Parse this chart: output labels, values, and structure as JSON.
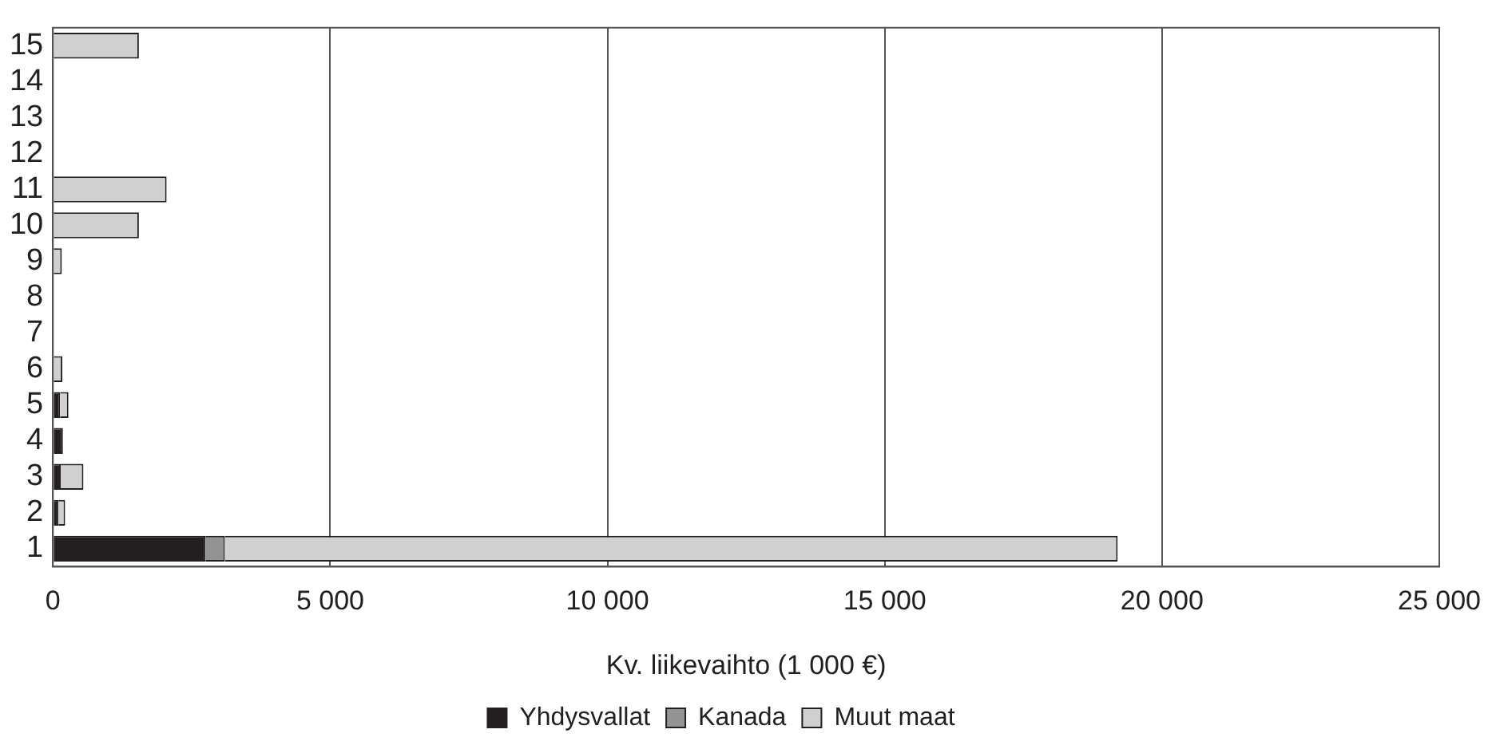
{
  "chart_data": {
    "type": "bar",
    "orientation": "horizontal",
    "stacked": true,
    "categories": [
      "15",
      "14",
      "13",
      "12",
      "11",
      "10",
      "9",
      "8",
      "7",
      "6",
      "5",
      "4",
      "3",
      "2",
      "1"
    ],
    "series": [
      {
        "name": "Yhdysvallat",
        "color": "#231f20",
        "values": [
          null,
          null,
          null,
          null,
          null,
          null,
          null,
          null,
          null,
          null,
          130,
          180,
          140,
          100,
          2750
        ]
      },
      {
        "name": "Kanada",
        "color": "#939393",
        "values": [
          null,
          null,
          null,
          null,
          null,
          null,
          null,
          null,
          null,
          null,
          null,
          null,
          null,
          null,
          350
        ]
      },
      {
        "name": "Muut maat",
        "color": "#d0d0d0",
        "values": [
          1550,
          null,
          null,
          null,
          2050,
          1550,
          160,
          null,
          null,
          170,
          150,
          null,
          410,
          120,
          16100
        ]
      }
    ],
    "xlim": [
      0,
      25000
    ],
    "xticks": [
      {
        "value": 0,
        "label": "0"
      },
      {
        "value": 5000,
        "label": "5 000"
      },
      {
        "value": 10000,
        "label": "10 000"
      },
      {
        "value": 15000,
        "label": "15 000"
      },
      {
        "value": 20000,
        "label": "20 000"
      },
      {
        "value": 25000,
        "label": "25 000"
      }
    ],
    "xlabel": "Kv. liikevaihto (1 000 €)",
    "grid": "x",
    "legend": "bottom"
  }
}
